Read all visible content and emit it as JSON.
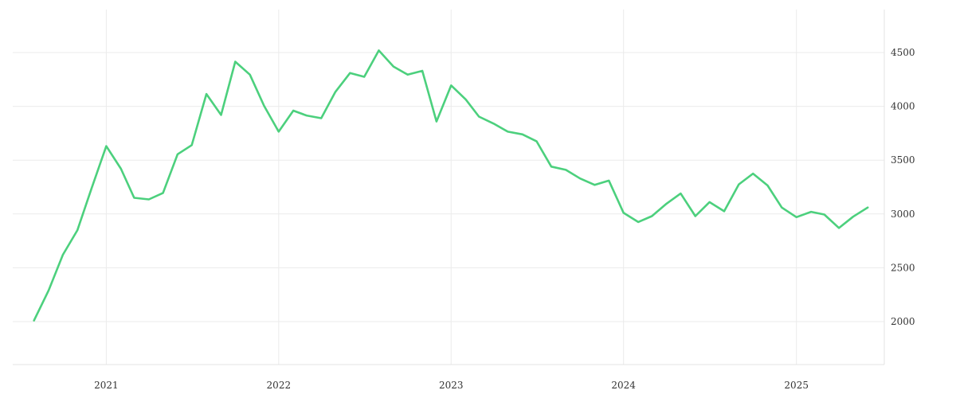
{
  "chart_data": {
    "type": "line",
    "title": "",
    "xlabel": "",
    "ylabel": "",
    "x_ticks": [
      "2021",
      "2022",
      "2023",
      "2024",
      "2025"
    ],
    "y_ticks": [
      2000,
      2500,
      3000,
      3500,
      4000,
      4500
    ],
    "ylim": [
      1600,
      4900
    ],
    "xlim": [
      "2020-06-17",
      "2025-07-06"
    ],
    "grid": true,
    "legend": "none",
    "y_axis_side": "right",
    "colors": {
      "line": "#4cd07d",
      "grid": "#ebebeb",
      "text": "#333333"
    },
    "series": [
      {
        "x": [
          "2020-08-01",
          "2020-09-01",
          "2020-10-01",
          "2020-11-01",
          "2020-12-01",
          "2021-01-01",
          "2021-02-01",
          "2021-03-01",
          "2021-04-01",
          "2021-05-01",
          "2021-06-01",
          "2021-07-01",
          "2021-08-01",
          "2021-09-01",
          "2021-10-01",
          "2021-11-01",
          "2021-12-01",
          "2022-01-01",
          "2022-02-01",
          "2022-03-01",
          "2022-04-01",
          "2022-05-01",
          "2022-06-01",
          "2022-07-01",
          "2022-08-01",
          "2022-09-01",
          "2022-10-01",
          "2022-11-01",
          "2022-12-01",
          "2023-01-01",
          "2023-02-01",
          "2023-03-01",
          "2023-04-01",
          "2023-05-01",
          "2023-06-01",
          "2023-07-01",
          "2023-08-01",
          "2023-09-01",
          "2023-10-01",
          "2023-11-01",
          "2023-12-01",
          "2024-01-01",
          "2024-02-01",
          "2024-03-01",
          "2024-04-01",
          "2024-05-01",
          "2024-06-01",
          "2024-07-01",
          "2024-08-01",
          "2024-09-01",
          "2024-10-01",
          "2024-11-01",
          "2024-12-01",
          "2025-01-01",
          "2025-02-01",
          "2025-03-01",
          "2025-04-01",
          "2025-05-01",
          "2025-06-01"
        ],
        "values": [
          2010,
          2290,
          2620,
          2850,
          3240,
          3630,
          3420,
          3150,
          3135,
          3195,
          3555,
          3640,
          4115,
          3920,
          4415,
          4295,
          4005,
          3765,
          3960,
          3915,
          3890,
          4135,
          4310,
          4275,
          4520,
          4370,
          4295,
          4330,
          3860,
          4195,
          4065,
          3905,
          3840,
          3765,
          3740,
          3675,
          3440,
          3410,
          3330,
          3270,
          3310,
          3010,
          2925,
          2980,
          3095,
          3190,
          2980,
          3110,
          3025,
          3275,
          3375,
          3265,
          3060,
          2970,
          3020,
          2995,
          2870,
          2975,
          3060
        ]
      }
    ]
  }
}
